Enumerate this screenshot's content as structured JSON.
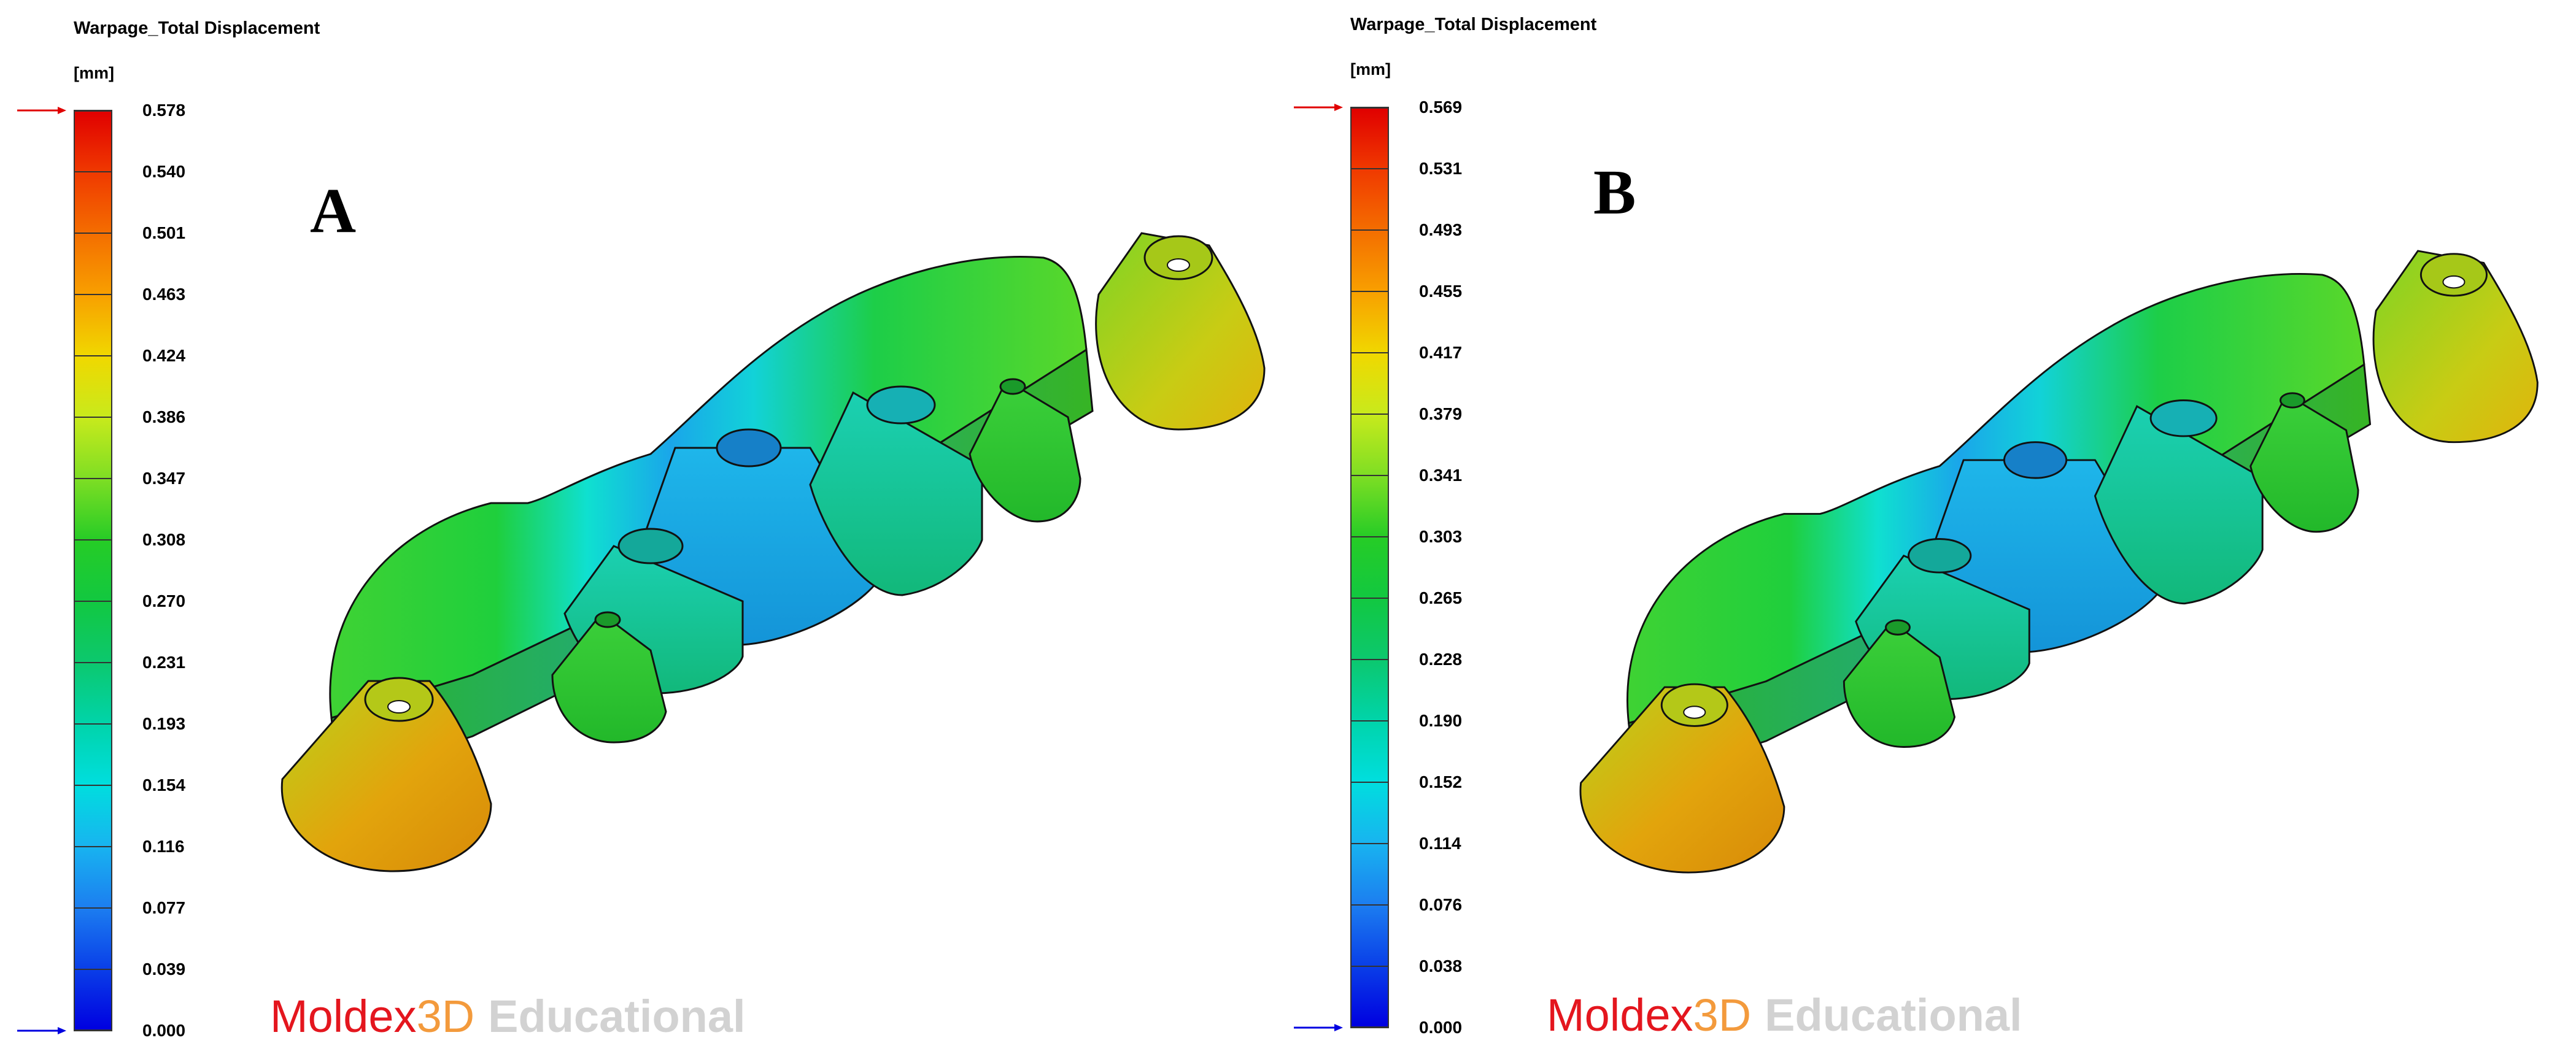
{
  "panels": [
    {
      "id": "A",
      "letter": "A",
      "title": "Warpage_Total Displacement",
      "unit": "[mm]",
      "scale_labels": [
        "0.578",
        "0.540",
        "0.501",
        "0.463",
        "0.424",
        "0.386",
        "0.347",
        "0.308",
        "0.270",
        "0.231",
        "0.193",
        "0.154",
        "0.116",
        "0.077",
        "0.039",
        "0.000"
      ],
      "max_marker_color": "#e00000",
      "min_marker_color": "#0000e0"
    },
    {
      "id": "B",
      "letter": "B",
      "title": "Warpage_Total Displacement",
      "unit": "[mm]",
      "scale_labels": [
        "0.569",
        "0.531",
        "0.493",
        "0.455",
        "0.417",
        "0.379",
        "0.341",
        "0.303",
        "0.265",
        "0.228",
        "0.190",
        "0.152",
        "0.114",
        "0.076",
        "0.038",
        "0.000"
      ],
      "max_marker_color": "#e00000",
      "min_marker_color": "#0000e0"
    }
  ],
  "logo": {
    "brand_part1": "Moldex",
    "brand_part2": "3D",
    "edition": "Educational",
    "colors": {
      "moldex": "#e4161e",
      "threed": "#f39a3c",
      "educational": "#d2d2d2"
    }
  }
}
